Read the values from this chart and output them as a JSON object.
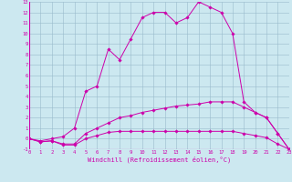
{
  "xlabel": "Windchill (Refroidissement éolien,°C)",
  "bg_color": "#cce8f0",
  "grid_color": "#99bbcc",
  "line_color": "#cc00aa",
  "xmin": 0,
  "xmax": 23,
  "ymin": -1,
  "ymax": 13,
  "yticks": [
    -1,
    0,
    1,
    2,
    3,
    4,
    5,
    6,
    7,
    8,
    9,
    10,
    11,
    12,
    13
  ],
  "xticks": [
    0,
    1,
    2,
    3,
    4,
    5,
    6,
    7,
    8,
    9,
    10,
    11,
    12,
    13,
    14,
    15,
    16,
    17,
    18,
    19,
    20,
    21,
    22,
    23
  ],
  "line1_x": [
    0,
    1,
    2,
    3,
    4,
    5,
    6,
    7,
    8,
    9,
    10,
    11,
    12,
    13,
    14,
    15,
    16,
    17,
    18,
    19,
    20,
    21,
    22,
    23
  ],
  "line1_y": [
    0,
    -0.2,
    0.0,
    0.2,
    1.0,
    4.5,
    5.0,
    8.5,
    7.5,
    9.5,
    11.5,
    12.0,
    12.0,
    11.0,
    11.5,
    13.0,
    12.5,
    12.0,
    10.0,
    3.5,
    2.5,
    2.0,
    0.5,
    -1.0
  ],
  "line2_x": [
    0,
    1,
    2,
    3,
    4,
    5,
    6,
    7,
    8,
    9,
    10,
    11,
    12,
    13,
    14,
    15,
    16,
    17,
    18,
    19,
    20,
    21,
    22,
    23
  ],
  "line2_y": [
    0,
    -0.3,
    -0.2,
    -0.5,
    -0.5,
    0.5,
    1.0,
    1.5,
    2.0,
    2.2,
    2.5,
    2.7,
    2.9,
    3.1,
    3.2,
    3.3,
    3.5,
    3.5,
    3.5,
    3.0,
    2.5,
    2.0,
    0.5,
    -1.0
  ],
  "line3_x": [
    0,
    1,
    2,
    3,
    4,
    5,
    6,
    7,
    8,
    9,
    10,
    11,
    12,
    13,
    14,
    15,
    16,
    17,
    18,
    19,
    20,
    21,
    22,
    23
  ],
  "line3_y": [
    0,
    -0.3,
    -0.2,
    -0.6,
    -0.6,
    0.0,
    0.3,
    0.6,
    0.7,
    0.7,
    0.7,
    0.7,
    0.7,
    0.7,
    0.7,
    0.7,
    0.7,
    0.7,
    0.7,
    0.5,
    0.3,
    0.1,
    -0.5,
    -1.0
  ]
}
